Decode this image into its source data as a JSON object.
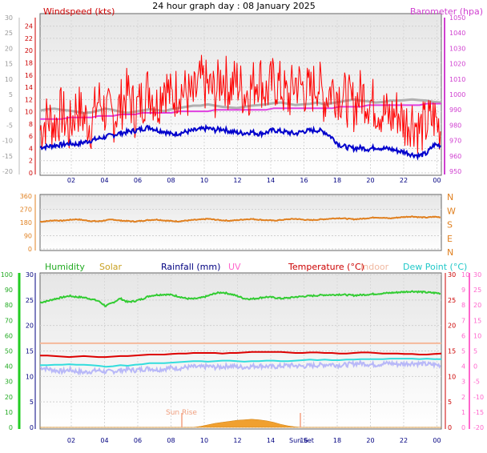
{
  "title": "24 hour graph day : 08 January 2025",
  "colors": {
    "wind": "#ff0000",
    "gust": "#0000cc",
    "baro": "#e040e0",
    "grey": "#b0b0b0",
    "winddir": "#e08020",
    "humidity": "#33cc33",
    "solar": "#f0a030",
    "rainfall": "#000080",
    "uv": "#ff66cc",
    "temperature": "#dd0000",
    "indoor": "#f5b89a",
    "dewpoint": "#33dddd",
    "apparent": "#b8b8f8"
  },
  "chart_data": [
    {
      "type": "line",
      "label_left": "Windspeed (kts)",
      "label_right": "Barometer (hpa)",
      "x_ticks": [
        "02",
        "04",
        "06",
        "08",
        "10",
        "12",
        "14",
        "16",
        "18",
        "20",
        "22",
        "00"
      ],
      "y_left_ticks": [
        24,
        22,
        20,
        18,
        16,
        14,
        12,
        10,
        8,
        6,
        4,
        2,
        0
      ],
      "y_outer_ticks": [
        30,
        25,
        20,
        15,
        10,
        5,
        0,
        -5,
        -10,
        -15,
        -20
      ],
      "y_right_ticks": [
        1050,
        1040,
        1030,
        1020,
        1010,
        1000,
        990,
        980,
        970,
        960,
        950
      ],
      "ylim": [
        0,
        25
      ],
      "series": [
        {
          "key": "wind",
          "values": [
            7,
            9,
            8,
            10,
            7,
            11,
            9,
            8,
            12,
            10,
            9,
            11,
            13,
            10,
            12,
            14,
            11,
            15,
            12,
            14,
            13,
            12,
            15,
            14,
            13,
            16,
            14,
            15,
            13,
            14,
            16,
            13,
            15,
            14,
            12,
            15,
            14,
            13,
            15,
            12,
            14,
            13,
            12,
            11,
            13,
            12,
            11,
            10,
            9,
            10,
            8,
            9,
            7,
            8,
            9,
            7
          ]
        },
        {
          "key": "gust",
          "values": [
            4.2,
            4.3,
            4.5,
            4.6,
            4.8,
            4.7,
            5.0,
            5.3,
            5.6,
            5.9,
            6.2,
            6.5,
            6.7,
            6.9,
            7.2,
            7.5,
            7.0,
            6.8,
            6.3,
            6.5,
            6.7,
            6.9,
            7.1,
            7.3,
            7.0,
            7.2,
            6.8,
            6.6,
            6.5,
            6.7,
            6.4,
            6.6,
            7.0,
            6.8,
            6.6,
            6.4,
            6.8,
            6.9,
            7.0,
            6.7,
            5.8,
            4.6,
            4.2,
            4.0,
            4.1,
            3.9,
            4.2,
            4.0,
            3.9,
            3.6,
            3.4,
            3.0,
            2.8,
            3.2,
            4.6,
            4.5
          ]
        },
        {
          "key": "baro",
          "values": [
            984,
            984,
            984,
            984,
            985,
            985,
            985,
            985,
            986,
            986,
            986,
            987,
            987,
            987,
            988,
            988,
            988,
            988,
            988,
            989,
            989,
            989,
            989,
            989,
            990,
            990,
            990,
            990,
            990,
            990,
            990,
            990,
            991,
            991,
            991,
            991,
            991,
            991,
            991,
            991,
            991,
            992,
            992,
            992,
            992,
            993,
            993,
            993,
            993,
            993,
            993,
            993,
            993,
            994,
            994,
            994
          ]
        },
        {
          "key": "grey",
          "values": [
            10.2,
            10.4,
            10.5,
            10.3,
            10.2,
            10.0,
            9.8,
            9.9,
            10.2,
            10.5,
            10.3,
            10.0,
            9.8,
            10.0,
            10.2,
            10.4,
            10.3,
            10.1,
            10.4,
            10.6,
            10.8,
            11.0,
            11.0,
            11.2,
            11.0,
            10.8,
            10.7,
            10.6,
            10.8,
            11.0,
            11.1,
            11.2,
            11.4,
            11.5,
            11.3,
            11.1,
            11.2,
            11.3,
            11.5,
            11.2,
            11.4,
            11.6,
            11.8,
            12.0,
            11.8,
            11.7,
            11.5,
            11.6,
            11.8,
            11.8,
            11.9,
            12.0,
            11.9,
            11.8,
            11.6,
            11.5
          ]
        }
      ]
    },
    {
      "type": "line",
      "y_left_ticks": [
        360,
        270,
        180,
        90,
        0
      ],
      "y_right_labels": [
        "N",
        "W",
        "S",
        "E",
        "N"
      ],
      "ylim": [
        0,
        360
      ],
      "series": [
        {
          "key": "winddir",
          "values": [
            185,
            190,
            195,
            192,
            198,
            202,
            196,
            190,
            188,
            195,
            200,
            193,
            190,
            187,
            192,
            197,
            200,
            194,
            190,
            188,
            193,
            197,
            200,
            205,
            199,
            195,
            192,
            196,
            201,
            204,
            199,
            196,
            193,
            197,
            202,
            205,
            200,
            196,
            199,
            203,
            207,
            210,
            206,
            202,
            205,
            210,
            215,
            212,
            208,
            214,
            218,
            221,
            216,
            214,
            219,
            216
          ]
        }
      ]
    },
    {
      "type": "line",
      "legend": [
        "Humidity",
        "Solar",
        "Rainfall (mm)",
        "UV",
        "Temperature (°C)",
        "Indoor",
        "Dew Point (°C)"
      ],
      "x_ticks": [
        "02",
        "04",
        "06",
        "08",
        "10",
        "12",
        "14",
        "16",
        "18",
        "20",
        "22",
        "00"
      ],
      "annotations": [
        "Sun Rise",
        "Sun Set"
      ],
      "y_outer_left_ticks": [
        100,
        90,
        80,
        70,
        60,
        50,
        40,
        30,
        20,
        10,
        0
      ],
      "y_left_ticks": [
        30,
        25,
        20,
        15,
        10,
        5,
        0
      ],
      "y_right_ticks": [
        30,
        25,
        20,
        15,
        10,
        5,
        0
      ],
      "y_outer_right_ticks": [
        10,
        9,
        8,
        7,
        6,
        5,
        4,
        3,
        2,
        1,
        0
      ],
      "y_right2_ticks": [
        30,
        25,
        20,
        15,
        10,
        5,
        0,
        -5,
        -10,
        -15,
        -20
      ],
      "ylim": [
        0,
        30
      ],
      "series": [
        {
          "key": "humidity",
          "values": [
            24.5,
            24.8,
            25.2,
            25.5,
            25.8,
            25.6,
            25.5,
            25.2,
            24.8,
            23.8,
            24.5,
            25.3,
            24.6,
            24.8,
            25.2,
            25.8,
            26.0,
            26.1,
            26.0,
            25.7,
            25.3,
            25.2,
            25.4,
            25.8,
            26.3,
            26.5,
            26.2,
            25.8,
            25.3,
            25.2,
            25.4,
            25.6,
            25.5,
            25.3,
            25.4,
            25.6,
            25.7,
            25.8,
            25.9,
            26.0,
            26.0,
            26.1,
            26.0,
            25.9,
            26.0,
            26.1,
            26.2,
            26.3,
            26.4,
            26.5,
            26.6,
            26.7,
            26.6,
            26.5,
            26.4,
            26.3
          ]
        },
        {
          "key": "temperature",
          "values": [
            14.1,
            14.1,
            14.0,
            13.9,
            13.8,
            13.9,
            14.0,
            13.9,
            13.8,
            13.8,
            13.9,
            14.0,
            14.0,
            14.1,
            14.2,
            14.3,
            14.3,
            14.3,
            14.4,
            14.5,
            14.5,
            14.6,
            14.6,
            14.6,
            14.6,
            14.5,
            14.6,
            14.6,
            14.7,
            14.8,
            14.8,
            14.8,
            14.8,
            14.8,
            14.7,
            14.6,
            14.6,
            14.7,
            14.7,
            14.6,
            14.6,
            14.5,
            14.5,
            14.6,
            14.7,
            14.7,
            14.6,
            14.5,
            14.5,
            14.5,
            14.4,
            14.4,
            14.3,
            14.3,
            14.4,
            14.5
          ]
        },
        {
          "key": "indoor",
          "values": [
            16.5,
            16.5,
            16.5,
            16.5,
            16.5,
            16.5,
            16.5,
            16.5,
            16.5,
            16.5,
            16.5,
            16.5,
            16.5,
            16.5,
            16.5,
            16.5,
            16.5,
            16.5,
            16.5,
            16.5,
            16.5,
            16.5,
            16.5,
            16.5,
            16.5,
            16.5,
            16.5,
            16.5,
            16.5,
            16.5,
            16.5,
            16.5,
            16.5,
            16.5,
            16.5,
            16.5,
            16.5,
            16.5,
            16.5,
            16.5,
            16.5,
            16.5,
            16.5,
            16.5,
            16.5,
            16.5,
            16.5,
            16.5,
            16.5,
            16.5,
            16.5,
            16.5,
            16.5,
            16.5,
            16.5,
            16.5
          ]
        },
        {
          "key": "dewpoint",
          "values": [
            12.2,
            12.2,
            12.3,
            12.3,
            12.4,
            12.3,
            12.3,
            12.2,
            12.1,
            11.9,
            12.0,
            12.2,
            12.1,
            12.3,
            12.4,
            12.6,
            12.6,
            12.6,
            12.7,
            12.8,
            12.9,
            13.0,
            13.0,
            12.9,
            13.0,
            13.1,
            13.1,
            13.0,
            12.9,
            13.0,
            13.0,
            13.1,
            13.1,
            13.0,
            13.0,
            13.1,
            13.2,
            13.3,
            13.2,
            13.3,
            13.2,
            13.2,
            13.3,
            13.3,
            13.4,
            13.4,
            13.4,
            13.4,
            13.5,
            13.5,
            13.5,
            13.5,
            13.4,
            13.5,
            13.4,
            13.4
          ]
        },
        {
          "key": "apparent",
          "values": [
            11.8,
            11.5,
            11.2,
            11.0,
            11.3,
            11.0,
            10.8,
            11.0,
            11.2,
            10.9,
            11.0,
            11.2,
            11.4,
            11.2,
            11.4,
            11.6,
            11.3,
            11.5,
            11.7,
            11.6,
            11.8,
            11.9,
            11.8,
            12.0,
            11.8,
            11.9,
            12.1,
            11.9,
            11.8,
            12.0,
            12.1,
            12.0,
            11.9,
            12.0,
            12.2,
            12.1,
            12.0,
            12.1,
            12.2,
            12.3,
            12.4,
            12.2,
            12.3,
            12.5,
            12.6,
            12.4,
            12.3,
            12.5,
            12.6,
            12.4,
            12.5,
            12.6,
            12.5,
            12.4,
            12.3,
            12.2
          ]
        },
        {
          "key": "solar",
          "values": [
            0,
            0,
            0,
            0,
            0,
            0,
            0,
            0,
            0,
            0,
            0,
            0,
            0,
            0,
            0,
            0,
            0,
            0,
            0,
            0,
            0,
            0,
            0.2,
            0.5,
            0.8,
            1.0,
            1.2,
            1.4,
            1.5,
            1.6,
            1.5,
            1.3,
            1.0,
            0.6,
            0.3,
            0.1,
            0,
            0,
            0,
            0,
            0,
            0,
            0,
            0,
            0,
            0,
            0,
            0,
            0,
            0,
            0,
            0,
            0,
            0,
            0,
            0
          ]
        }
      ]
    }
  ]
}
